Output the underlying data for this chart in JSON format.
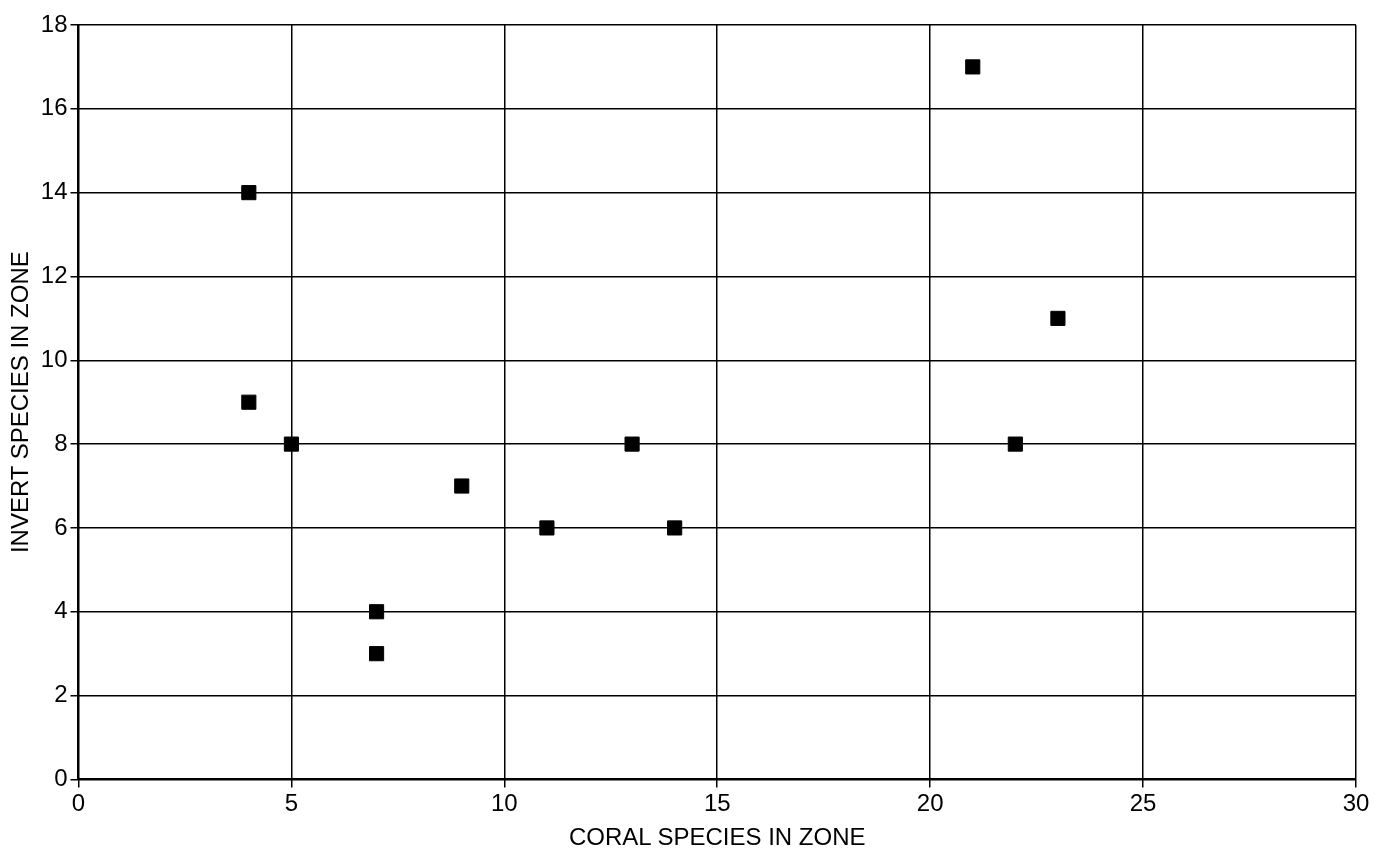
{
  "chart_data": {
    "type": "scatter",
    "xlabel": "CORAL SPECIES IN ZONE",
    "ylabel": "INVERT SPECIES IN ZONE",
    "x": [
      4,
      4,
      5,
      7,
      7,
      9,
      11,
      13,
      14,
      21,
      22,
      23
    ],
    "series": [
      {
        "color": "#000000",
        "values": [
          14,
          9,
          8,
          4,
          3,
          7,
          6,
          8,
          6,
          17,
          8,
          11
        ]
      }
    ],
    "xlim": [
      0,
      30
    ],
    "xticks": [
      0,
      5,
      10,
      15,
      20,
      25,
      30
    ],
    "ylim": [
      0,
      18
    ],
    "yticks": [
      0,
      2,
      4,
      6,
      8,
      10,
      12,
      14,
      16,
      18
    ],
    "grid": true,
    "legend": false,
    "marker": "square"
  }
}
